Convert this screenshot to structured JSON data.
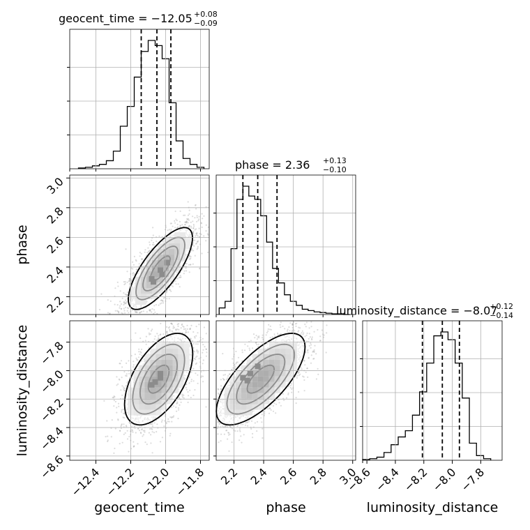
{
  "chart_data": {
    "type": "corner",
    "parameters": [
      "geocent_time",
      "phase",
      "luminosity_distance"
    ],
    "axis_labels": {
      "geocent_time": "geocent_time",
      "phase": "phase",
      "luminosity_distance": "luminosity_distance"
    },
    "ranges": {
      "geocent_time": [
        -12.55,
        -11.75
      ],
      "phase": [
        2.08,
        3.02
      ],
      "luminosity_distance": [
        -8.63,
        -7.65
      ]
    },
    "ticks": {
      "geocent_time": [
        -12.4,
        -12.2,
        -12.0,
        -11.8
      ],
      "phase": [
        2.2,
        2.4,
        2.6,
        2.8,
        3.0
      ],
      "luminosity_distance": [
        -8.6,
        -8.4,
        -8.2,
        -8.0,
        -7.8
      ]
    },
    "tick_labels": {
      "geocent_time": [
        "−12.4",
        "−12.2",
        "−12.0",
        "−11.8"
      ],
      "phase": [
        "2.2",
        "2.4",
        "2.6",
        "2.8",
        "3.0"
      ],
      "luminosity_distance": [
        "−8.6",
        "−8.4",
        "−8.2",
        "−8.0",
        "−7.8"
      ]
    },
    "titles": [
      {
        "param": "geocent_time",
        "prefix": "geocent_time = −12.05",
        "upper": "+0.08",
        "lower": "−0.09"
      },
      {
        "param": "phase",
        "prefix": "phase = 2.36",
        "upper": "+0.13",
        "lower": "−0.10"
      },
      {
        "param": "luminosity_distance",
        "prefix": "luminosity_distance = −8.07",
        "upper": "+0.12",
        "lower": "−0.14"
      }
    ],
    "quantiles": {
      "geocent_time": [
        -12.14,
        -12.05,
        -11.97
      ],
      "phase": [
        2.26,
        2.36,
        2.49
      ],
      "luminosity_distance": [
        -8.21,
        -8.07,
        -7.95
      ]
    },
    "histograms": {
      "geocent_time": {
        "edges": [
          -12.5,
          -12.46,
          -12.42,
          -12.38,
          -12.34,
          -12.3,
          -12.26,
          -12.22,
          -12.18,
          -12.14,
          -12.1,
          -12.06,
          -12.02,
          -11.98,
          -11.94,
          -11.9,
          -11.86,
          -11.82,
          -11.78
        ],
        "counts": [
          1,
          2,
          4,
          6,
          11,
          24,
          58,
          85,
          125,
          160,
          175,
          168,
          150,
          90,
          38,
          14,
          6,
          2
        ]
      },
      "phase": {
        "edges": [
          2.1,
          2.14,
          2.18,
          2.22,
          2.26,
          2.3,
          2.34,
          2.38,
          2.42,
          2.46,
          2.5,
          2.54,
          2.58,
          2.62,
          2.66,
          2.7,
          2.74,
          2.78,
          2.82,
          2.86,
          2.9,
          2.94,
          2.98
        ],
        "counts": [
          10,
          20,
          100,
          175,
          195,
          180,
          175,
          150,
          110,
          70,
          48,
          30,
          20,
          14,
          8,
          6,
          4,
          3,
          2,
          1,
          1,
          0
        ]
      },
      "luminosity_distance": {
        "edges": [
          -8.63,
          -8.58,
          -8.53,
          -8.48,
          -8.43,
          -8.38,
          -8.33,
          -8.28,
          -8.23,
          -8.18,
          -8.13,
          -8.08,
          -8.03,
          -7.98,
          -7.93,
          -7.88,
          -7.83,
          -7.78,
          -7.73
        ],
        "counts": [
          1,
          2,
          4,
          10,
          20,
          30,
          38,
          58,
          88,
          125,
          160,
          165,
          155,
          125,
          80,
          22,
          6,
          2
        ]
      }
    },
    "density_blocks": {
      "phase_vs_geocent_time": [
        [
          -12.07,
          2.3
        ],
        [
          -12.03,
          2.38
        ],
        [
          -12.02,
          2.35
        ],
        [
          -11.99,
          2.43
        ],
        [
          -12.08,
          2.32
        ]
      ],
      "lumdist_vs_geocent_time": [
        [
          -12.08,
          -8.1
        ],
        [
          -12.03,
          -8.05
        ],
        [
          -12.03,
          -8.02
        ],
        [
          -12.06,
          -8.08
        ]
      ],
      "lumdist_vs_phase": [
        [
          2.26,
          -8.05
        ],
        [
          2.31,
          -8.02
        ],
        [
          2.36,
          -7.97
        ],
        [
          2.29,
          -8.07
        ]
      ]
    },
    "grid": true
  }
}
